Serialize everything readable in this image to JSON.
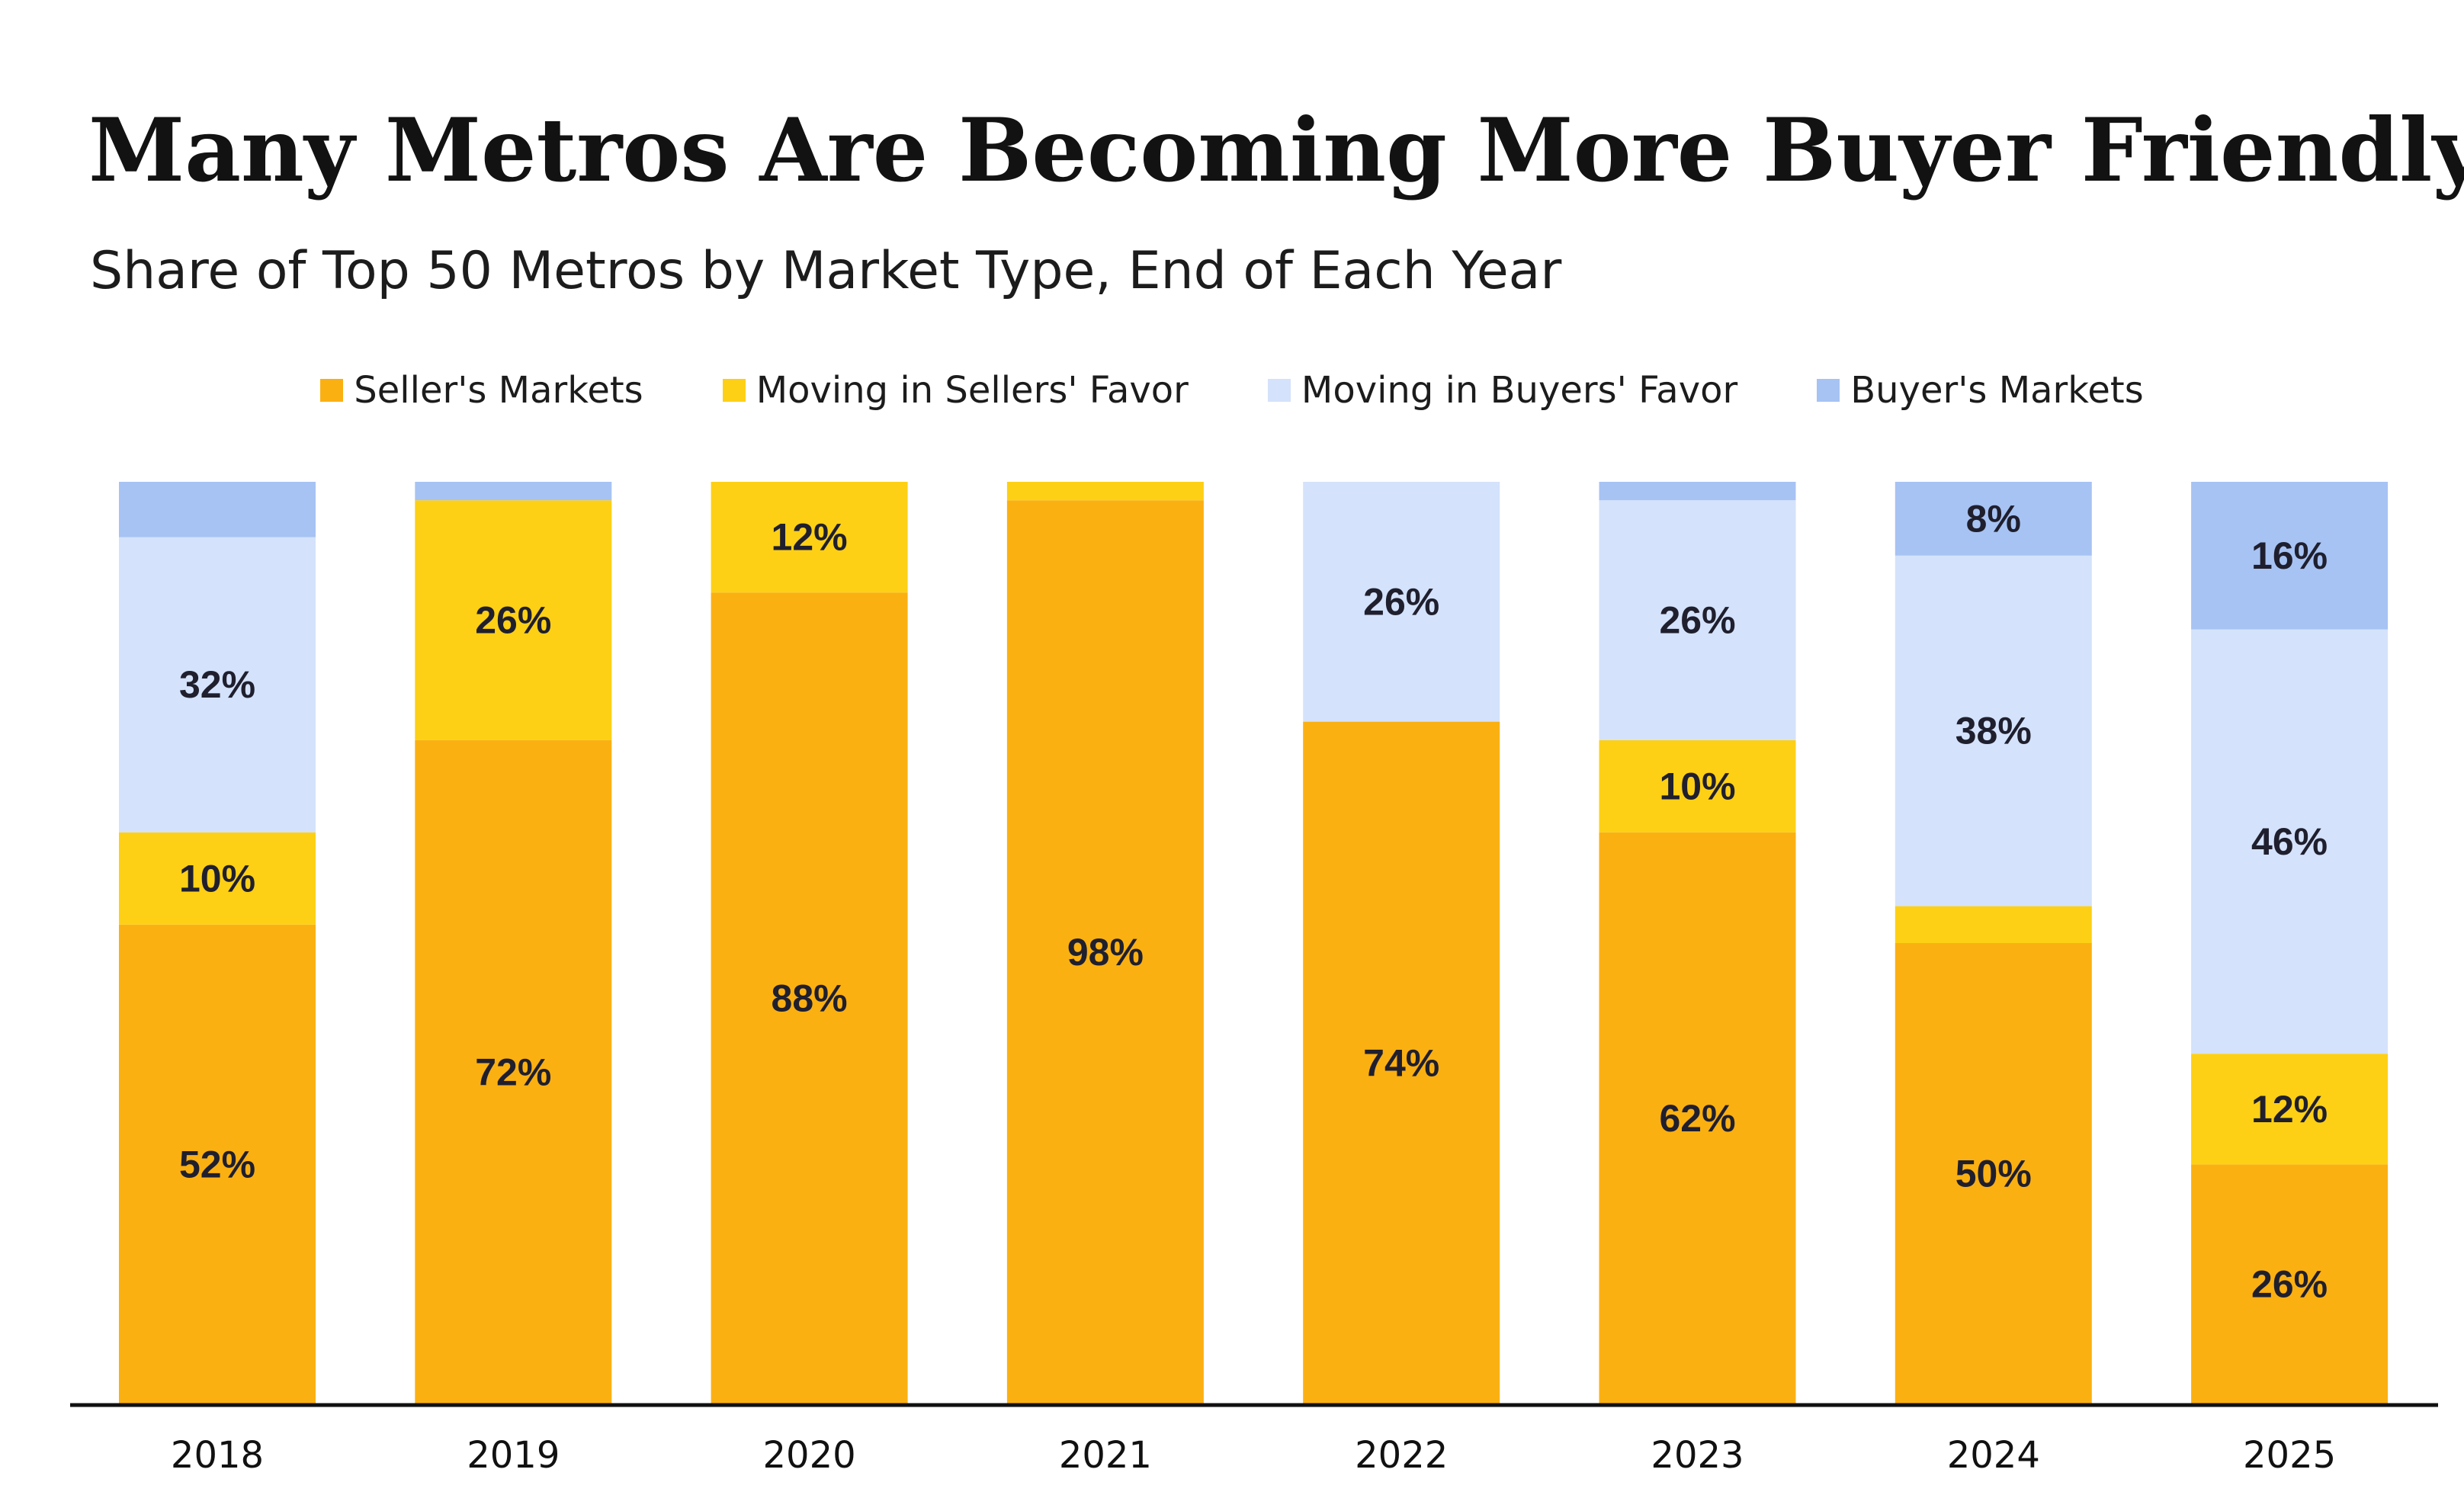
{
  "colors": {
    "seller": "#FBB012",
    "moving_sellers": "#FDD015",
    "moving_buyers": "#D4E2FB",
    "buyer": "#A7C3F3",
    "axis": "#111111",
    "label": "#1f1f2e"
  },
  "chart_data": {
    "type": "bar",
    "stacked": true,
    "title": "Many Metros Are Becoming More Buyer Friendly",
    "subtitle": "Share of Top 50 Metros by Market Type, End of Each Year",
    "categories": [
      "2018",
      "2019",
      "2020",
      "2021",
      "2022",
      "2023",
      "2024",
      "2025"
    ],
    "ylim": [
      0,
      100
    ],
    "unit": "%",
    "legend_position": "top",
    "grid": false,
    "series": [
      {
        "name": "Seller's Markets",
        "color_key": "seller",
        "values": [
          52,
          72,
          88,
          98,
          74,
          62,
          50,
          26
        ]
      },
      {
        "name": "Moving in Sellers' Favor",
        "color_key": "moving_sellers",
        "values": [
          10,
          26,
          12,
          2,
          0,
          10,
          4,
          12
        ]
      },
      {
        "name": "Moving in Buyers' Favor",
        "color_key": "moving_buyers",
        "values": [
          32,
          0,
          0,
          0,
          26,
          26,
          38,
          46
        ]
      },
      {
        "name": "Buyer's Markets",
        "color_key": "buyer",
        "values": [
          6,
          2,
          0,
          0,
          0,
          2,
          8,
          16
        ]
      }
    ],
    "data_labels": [
      {
        "year": "2018",
        "series": "Seller's Markets",
        "text": "52%"
      },
      {
        "year": "2018",
        "series": "Moving in Sellers' Favor",
        "text": "10%"
      },
      {
        "year": "2018",
        "series": "Moving in Buyers' Favor",
        "text": "32%"
      },
      {
        "year": "2019",
        "series": "Seller's Markets",
        "text": "72%"
      },
      {
        "year": "2019",
        "series": "Moving in Sellers' Favor",
        "text": "26%"
      },
      {
        "year": "2020",
        "series": "Seller's Markets",
        "text": "88%"
      },
      {
        "year": "2020",
        "series": "Moving in Sellers' Favor",
        "text": "12%"
      },
      {
        "year": "2021",
        "series": "Seller's Markets",
        "text": "98%"
      },
      {
        "year": "2022",
        "series": "Seller's Markets",
        "text": "74%"
      },
      {
        "year": "2022",
        "series": "Moving in Buyers' Favor",
        "text": "26%"
      },
      {
        "year": "2023",
        "series": "Seller's Markets",
        "text": "62%"
      },
      {
        "year": "2023",
        "series": "Moving in Sellers' Favor",
        "text": "10%"
      },
      {
        "year": "2023",
        "series": "Moving in Buyers' Favor",
        "text": "26%"
      },
      {
        "year": "2024",
        "series": "Seller's Markets",
        "text": "50%"
      },
      {
        "year": "2024",
        "series": "Moving in Buyers' Favor",
        "text": "38%"
      },
      {
        "year": "2024",
        "series": "Buyer's Markets",
        "text": "8%"
      },
      {
        "year": "2025",
        "series": "Seller's Markets",
        "text": "26%"
      },
      {
        "year": "2025",
        "series": "Moving in Sellers' Favor",
        "text": "12%"
      },
      {
        "year": "2025",
        "series": "Moving in Buyers' Favor",
        "text": "46%"
      },
      {
        "year": "2025",
        "series": "Buyer's Markets",
        "text": "16%"
      }
    ]
  }
}
